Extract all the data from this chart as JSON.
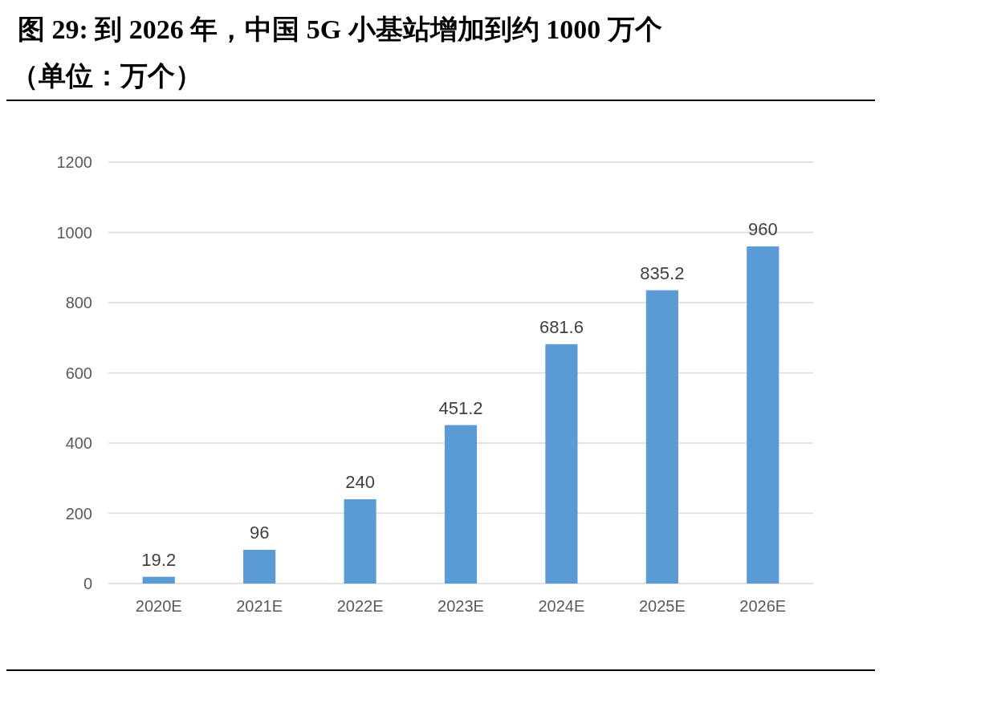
{
  "chart_data": {
    "type": "bar",
    "title": "图 29: 到 2026 年，中国 5G 小基站增加到约 1000 万个",
    "subtitle": "（单位：万个）",
    "categories": [
      "2020E",
      "2021E",
      "2022E",
      "2023E",
      "2024E",
      "2025E",
      "2026E"
    ],
    "values": [
      19.2,
      96,
      240,
      451.2,
      681.6,
      835.2,
      960
    ],
    "color": "#5b9bd5",
    "ylim": [
      0,
      1200
    ],
    "yticks": [
      0,
      200,
      400,
      600,
      800,
      1000,
      1200
    ],
    "grid": "y",
    "data_labels": true
  }
}
